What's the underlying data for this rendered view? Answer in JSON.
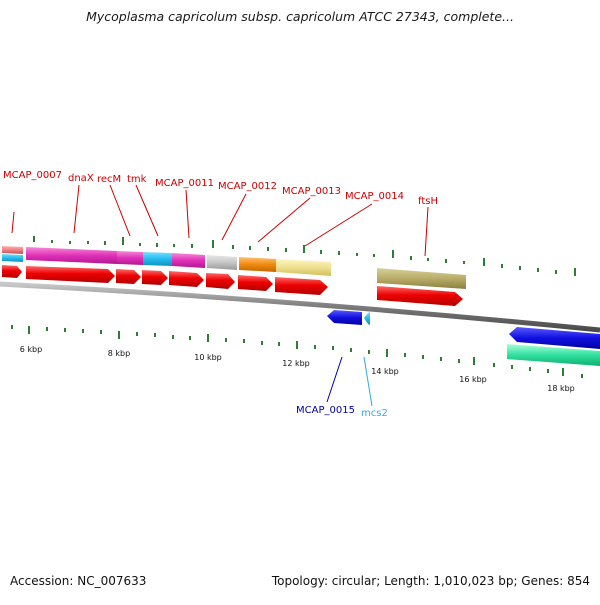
{
  "title": "Mycoplasma capricolum subsp. capricolum ATCC 27343, complete...",
  "footer": {
    "accession": "Accession: NC_007633",
    "summary": "Topology: circular; Length: 1,010,023 bp; Genes: 854"
  },
  "scale_labels": [
    "6 kbp",
    "8 kbp",
    "10 kbp",
    "12 kbp",
    "14 kbp",
    "16 kbp",
    "18 kbp"
  ],
  "gene_labels": [
    "MCAP_0007",
    "dnaX",
    "recM",
    "tmk",
    "MCAP_0011",
    "MCAP_0012",
    "MCAP_0013",
    "MCAP_0014",
    "ftsH",
    "MCAP_0015",
    "mcs2"
  ],
  "colors": {
    "label_red": "#cc0000",
    "label_navy": "#0000aa",
    "label_cyan": "#33aadd",
    "cds_red": "#ee0000",
    "backbone": "#8a8a8a",
    "tick_green": "#2e7d32"
  }
}
